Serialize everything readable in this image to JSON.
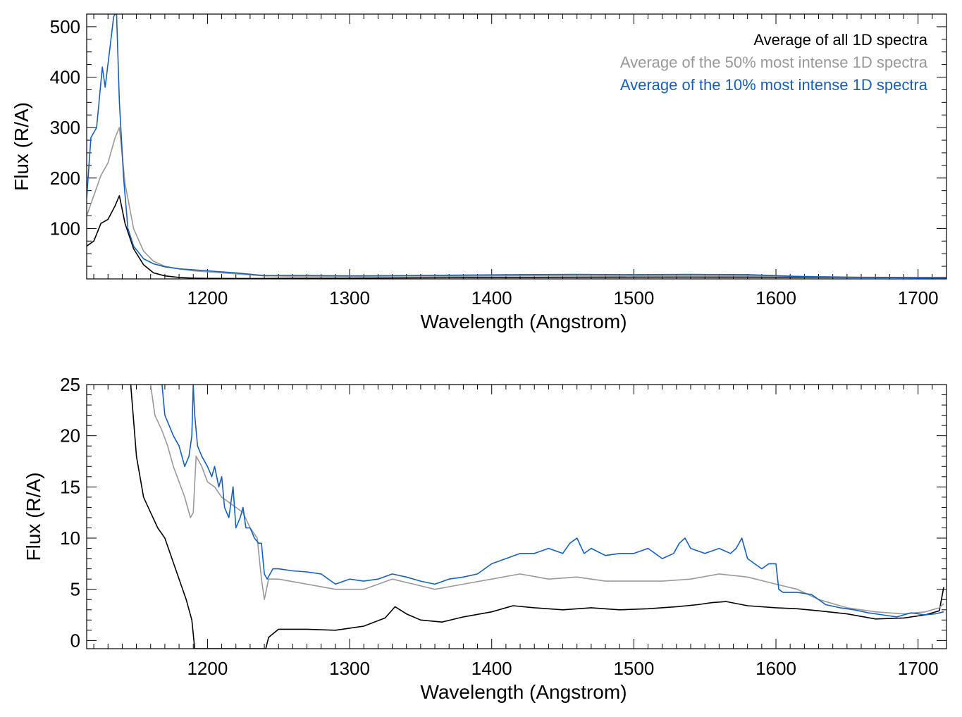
{
  "chart_data": [
    {
      "type": "line",
      "xlabel": "Wavelength (Angstrom)",
      "ylabel": "Flux (R/A)",
      "xlim": [
        1115,
        1720
      ],
      "ylim": [
        0,
        525
      ],
      "xticks": [
        1200,
        1300,
        1400,
        1500,
        1600,
        1700
      ],
      "yticks": [
        100,
        200,
        300,
        400,
        500
      ],
      "legend_position": "top-right",
      "series": [
        {
          "name": "Average of all 1D spectra",
          "color": "#000000",
          "x": [
            1115,
            1120,
            1125,
            1130,
            1135,
            1138,
            1142,
            1148,
            1155,
            1162,
            1170,
            1180,
            1190,
            1200,
            1220,
            1240,
            1260,
            1300,
            1340,
            1380,
            1420,
            1460,
            1500,
            1540,
            1580,
            1620,
            1660,
            1700,
            1720
          ],
          "y": [
            65,
            75,
            110,
            118,
            145,
            165,
            110,
            60,
            28,
            12,
            6,
            3,
            1.5,
            1,
            0.8,
            0.9,
            1.2,
            1.5,
            2.2,
            2.5,
            3,
            3.2,
            3.4,
            3.5,
            3.4,
            3.2,
            2.8,
            2.4,
            2.2
          ]
        },
        {
          "name": "Average of the 50% most intense 1D spectra",
          "color": "#999999",
          "x": [
            1115,
            1120,
            1125,
            1130,
            1135,
            1138,
            1142,
            1148,
            1155,
            1162,
            1170,
            1180,
            1190,
            1200,
            1220,
            1240,
            1260,
            1300,
            1340,
            1380,
            1420,
            1460,
            1500,
            1540,
            1580,
            1620,
            1660,
            1700,
            1720
          ],
          "y": [
            125,
            165,
            205,
            230,
            280,
            300,
            190,
            100,
            55,
            35,
            25,
            20,
            16,
            14,
            10,
            6,
            5.5,
            5.5,
            5.8,
            5.5,
            6,
            6,
            6,
            6,
            6,
            5,
            3.5,
            3,
            3
          ]
        },
        {
          "name": "Average of the 10% most intense 1D spectra",
          "color": "#1560BD",
          "x": [
            1115,
            1118,
            1122,
            1126,
            1128,
            1131,
            1134,
            1136,
            1138,
            1141,
            1144,
            1148,
            1155,
            1162,
            1170,
            1180,
            1190,
            1200,
            1220,
            1240,
            1260,
            1300,
            1340,
            1380,
            1420,
            1460,
            1500,
            1540,
            1580,
            1620,
            1660,
            1700,
            1720
          ],
          "y": [
            160,
            280,
            300,
            420,
            380,
            450,
            520,
            530,
            350,
            200,
            100,
            65,
            40,
            30,
            24,
            20,
            18,
            16,
            12,
            6.5,
            7,
            6,
            6.5,
            7.5,
            8.5,
            9,
            8.5,
            9,
            8.5,
            4.5,
            3,
            2.5,
            2.7
          ]
        }
      ]
    },
    {
      "type": "line",
      "xlabel": "Wavelength (Angstrom)",
      "ylabel": "Flux (R/A)",
      "xlim": [
        1115,
        1720
      ],
      "ylim": [
        -0.8,
        25
      ],
      "xticks": [
        1200,
        1300,
        1400,
        1500,
        1600,
        1700
      ],
      "yticks": [
        0,
        5,
        10,
        15,
        20,
        25
      ],
      "series": [
        {
          "color": "#000000",
          "x": [
            1146,
            1150,
            1155,
            1160,
            1165,
            1170,
            1175,
            1180,
            1185,
            1189,
            1191,
            1241,
            1243,
            1250,
            1270,
            1290,
            1310,
            1325,
            1332,
            1340,
            1350,
            1365,
            1380,
            1400,
            1415,
            1430,
            1450,
            1470,
            1490,
            1510,
            1530,
            1545,
            1555,
            1565,
            1580,
            1600,
            1615,
            1630,
            1650,
            1670,
            1690,
            1705,
            1715,
            1718
          ],
          "y": [
            25,
            18,
            14,
            12.5,
            11,
            10,
            8,
            6,
            4,
            2,
            -0.8,
            -0.8,
            0.3,
            1.1,
            1.1,
            1.0,
            1.4,
            2.2,
            3.3,
            2.6,
            2.0,
            1.8,
            2.3,
            2.8,
            3.4,
            3.2,
            3.0,
            3.2,
            3.0,
            3.1,
            3.3,
            3.5,
            3.7,
            3.8,
            3.4,
            3.2,
            3.1,
            2.9,
            2.6,
            2.1,
            2.2,
            2.5,
            2.9,
            5.2
          ]
        },
        {
          "color": "#999999",
          "x": [
            1155,
            1160,
            1163,
            1168,
            1172,
            1176,
            1180,
            1184,
            1188,
            1190,
            1192,
            1196,
            1200,
            1205,
            1210,
            1215,
            1220,
            1225,
            1230,
            1235,
            1238,
            1240,
            1243,
            1250,
            1270,
            1290,
            1310,
            1330,
            1345,
            1360,
            1380,
            1400,
            1420,
            1440,
            1460,
            1480,
            1500,
            1520,
            1540,
            1560,
            1580,
            1600,
            1615,
            1630,
            1650,
            1670,
            1690,
            1705,
            1715,
            1718
          ],
          "y": [
            25,
            25,
            22,
            20.5,
            19,
            17,
            15.5,
            14,
            12,
            12.5,
            18,
            17,
            15.5,
            15,
            14,
            13.5,
            13,
            12.5,
            11,
            10,
            6,
            4,
            6,
            6,
            5.5,
            5,
            5,
            6,
            5.5,
            5,
            5.5,
            6,
            6.5,
            6,
            6.2,
            5.8,
            5.8,
            5.8,
            6,
            6.5,
            6.2,
            5.5,
            5,
            4,
            3.2,
            2.8,
            2.6,
            2.8,
            3.2,
            3.6
          ]
        },
        {
          "color": "#1560BD",
          "x": [
            1168,
            1170,
            1173,
            1176,
            1180,
            1184,
            1187,
            1189,
            1190,
            1191,
            1193,
            1196,
            1200,
            1203,
            1205,
            1208,
            1210,
            1212,
            1215,
            1218,
            1220,
            1223,
            1225,
            1227,
            1230,
            1233,
            1236,
            1238,
            1240,
            1242,
            1246,
            1250,
            1260,
            1270,
            1280,
            1290,
            1300,
            1310,
            1320,
            1330,
            1340,
            1350,
            1360,
            1370,
            1380,
            1390,
            1400,
            1410,
            1420,
            1430,
            1440,
            1450,
            1455,
            1460,
            1465,
            1470,
            1480,
            1490,
            1500,
            1510,
            1520,
            1528,
            1532,
            1536,
            1540,
            1550,
            1560,
            1568,
            1572,
            1576,
            1580,
            1585,
            1590,
            1595,
            1600,
            1602,
            1605,
            1615,
            1625,
            1635,
            1645,
            1655,
            1665,
            1675,
            1685,
            1695,
            1705,
            1712,
            1718
          ],
          "y": [
            25,
            22,
            21,
            20,
            19,
            17,
            18,
            20,
            25,
            22,
            19,
            18,
            17,
            16,
            17,
            15,
            16,
            13,
            12,
            15,
            11,
            12,
            13,
            11,
            11,
            10,
            9.5,
            9.5,
            6.5,
            6,
            7,
            7,
            6.8,
            6.7,
            6.5,
            5.5,
            6,
            5.8,
            6,
            6.5,
            6.2,
            5.8,
            5.5,
            6,
            6.2,
            6.5,
            7.5,
            8,
            8.5,
            8.5,
            9,
            8.5,
            9.5,
            10,
            8.5,
            9,
            8.3,
            8.5,
            8.5,
            9,
            8,
            8.5,
            9.5,
            10,
            9,
            8.5,
            9,
            8.5,
            9,
            10,
            8,
            7.5,
            7,
            7.5,
            7.5,
            5,
            4.7,
            4.7,
            4.5,
            3.5,
            3.2,
            3,
            2.7,
            2.5,
            2.3,
            2.7,
            2.5,
            2.6,
            2.8
          ]
        }
      ]
    }
  ]
}
